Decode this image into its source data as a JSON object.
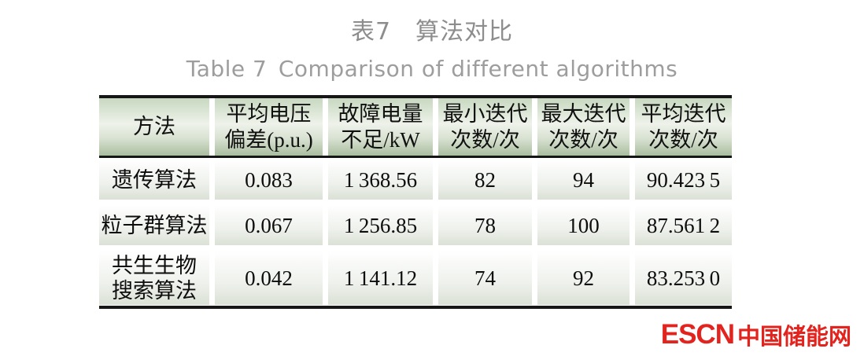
{
  "page": {
    "title_cn": "表7　算法对比",
    "title_en": "Table 7 Comparison of different algorithms"
  },
  "table": {
    "columns": [
      {
        "name": "method",
        "lines": [
          "方法"
        ]
      },
      {
        "name": "avg-voltage-deviation",
        "lines": [
          "平均电压",
          "偏差(p.u.)"
        ]
      },
      {
        "name": "fault-power-shortage",
        "lines": [
          "故障电量",
          "不足/kW"
        ]
      },
      {
        "name": "min-iterations",
        "lines": [
          "最小迭代",
          "次数/次"
        ]
      },
      {
        "name": "max-iterations",
        "lines": [
          "最大迭代",
          "次数/次"
        ]
      },
      {
        "name": "avg-iterations",
        "lines": [
          "平均迭代",
          "次数/次"
        ]
      }
    ],
    "rows": [
      {
        "method_lines": [
          "遗传算法"
        ],
        "cells": [
          "0.083",
          "1 368.56",
          "82",
          "94",
          "90.423 5"
        ]
      },
      {
        "method_lines": [
          "粒子群算法"
        ],
        "cells": [
          "0.067",
          "1 256.85",
          "78",
          "100",
          "87.561 2"
        ]
      },
      {
        "method_lines": [
          "共生生物",
          "搜索算法"
        ],
        "cells": [
          "0.042",
          "1 141.12",
          "74",
          "92",
          "83.253 0"
        ]
      }
    ],
    "header_green": "#c8d8c0",
    "border_color": "#161616"
  },
  "watermark": {
    "logo_en": "ESCN",
    "logo_cn": "中国储能网",
    "color": "#e3231d"
  }
}
